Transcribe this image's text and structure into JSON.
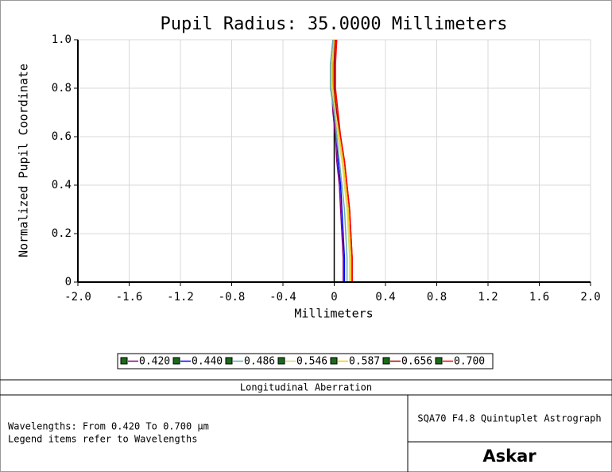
{
  "chart_data": {
    "type": "line",
    "title": "Pupil Radius: 35.0000 Millimeters",
    "x_label": "Millimeters",
    "y_label": "Normalized Pupil Coordinate",
    "xlim": [
      -2,
      2
    ],
    "ylim": [
      0,
      1
    ],
    "xticks": [
      {
        "value": -2,
        "label": "-2.0"
      },
      -1.6,
      -1.2,
      -0.8,
      -0.4,
      0,
      0.4,
      0.8,
      1.2,
      1.6,
      {
        "value": 2,
        "label": "2.0"
      }
    ],
    "yticks": [
      0,
      0.2,
      0.4,
      0.6,
      0.8,
      {
        "value": 1,
        "label": "1.0"
      }
    ],
    "grid": true,
    "y": [
      0,
      0.1,
      0.2,
      0.3,
      0.4,
      0.5,
      0.6,
      0.7,
      0.8,
      0.9,
      1.0
    ],
    "series": [
      {
        "name": "0.420",
        "color": "#800080",
        "x": [
          0.07,
          0.07,
          0.06,
          0.05,
          0.04,
          0.02,
          0.01,
          -0.01,
          -0.02,
          -0.01,
          0.01
        ]
      },
      {
        "name": "0.440",
        "color": "#0000ff",
        "x": [
          0.08,
          0.08,
          0.07,
          0.06,
          0.05,
          0.03,
          0.02,
          0.0,
          -0.02,
          -0.02,
          0.0
        ]
      },
      {
        "name": "0.486",
        "color": "#6aaab0",
        "x": [
          0.1,
          0.1,
          0.09,
          0.08,
          0.06,
          0.04,
          0.02,
          0.0,
          -0.03,
          -0.03,
          -0.01
        ]
      },
      {
        "name": "0.546",
        "color": "#d8dc70",
        "x": [
          0.12,
          0.12,
          0.11,
          0.1,
          0.08,
          0.06,
          0.03,
          0.01,
          -0.02,
          -0.02,
          0.0
        ]
      },
      {
        "name": "0.587",
        "color": "#f0c800",
        "x": [
          0.13,
          0.13,
          0.12,
          0.11,
          0.09,
          0.07,
          0.04,
          0.02,
          -0.01,
          -0.01,
          0.0
        ]
      },
      {
        "name": "0.656",
        "color": "#b00000",
        "x": [
          0.14,
          0.14,
          0.13,
          0.12,
          0.1,
          0.08,
          0.05,
          0.02,
          0.0,
          0.0,
          0.01
        ]
      },
      {
        "name": "0.700",
        "color": "#ff0000",
        "x": [
          0.14,
          0.14,
          0.13,
          0.12,
          0.1,
          0.08,
          0.05,
          0.03,
          0.01,
          0.01,
          0.02
        ]
      }
    ],
    "footer": {
      "title": "Longitudinal Aberration",
      "notes": [
        "Wavelengths: From 0.420 To 0.700 µm",
        "Legend items refer to Wavelengths"
      ],
      "system": "SQA70 F4.8 Quintuplet Astrograph",
      "brand": "Askar"
    }
  }
}
